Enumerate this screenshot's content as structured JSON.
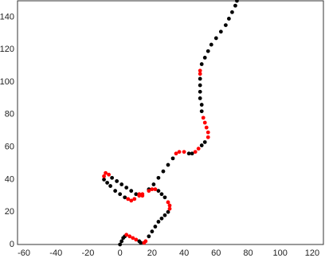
{
  "chart_data": {
    "type": "scatter",
    "xlim": [
      -64,
      127
    ],
    "ylim": [
      0,
      150
    ],
    "xticks": [
      -60,
      -40,
      -20,
      0,
      20,
      40,
      60,
      80,
      100,
      120
    ],
    "yticks": [
      0,
      20,
      40,
      60,
      80,
      100,
      120,
      140
    ],
    "grid": true,
    "series": [
      {
        "color": "#000000",
        "x": [
          0,
          1,
          2,
          3,
          12,
          13,
          18,
          20,
          22,
          24,
          26,
          28,
          30,
          28,
          26,
          24,
          3,
          0,
          -3,
          -6,
          -8,
          -10,
          -5,
          -2,
          1,
          4,
          7,
          10,
          18,
          21,
          24,
          27,
          30,
          33,
          43,
          45,
          51,
          53,
          51,
          51,
          50,
          50,
          50,
          50,
          51,
          53,
          55,
          57,
          60,
          63,
          66,
          68,
          70,
          72,
          73
        ],
        "y": [
          0,
          2,
          4,
          5,
          2,
          1,
          5,
          8,
          11,
          14,
          16,
          18,
          20,
          29,
          31,
          33,
          29,
          31,
          33,
          36,
          38,
          40,
          41,
          39,
          37,
          35,
          33,
          31,
          34,
          37,
          41,
          45,
          49,
          53,
          56,
          56,
          61,
          63,
          82,
          86,
          90,
          94,
          98,
          102,
          111,
          115,
          119,
          123,
          127,
          131,
          135,
          139,
          143,
          147,
          150
        ]
      },
      {
        "color": "#ff0000",
        "x": [
          4,
          6,
          8,
          10,
          15,
          16,
          31,
          31,
          30,
          22,
          20,
          18,
          14,
          12,
          9,
          7,
          5,
          -10,
          -9,
          -7,
          12,
          14,
          35,
          37,
          40,
          47,
          49,
          55,
          55,
          54,
          53,
          52,
          50,
          50
        ],
        "y": [
          6,
          5,
          4,
          3,
          1,
          2,
          22,
          24,
          26,
          34,
          34,
          33,
          31,
          30,
          28,
          27,
          28,
          42,
          44,
          43,
          31,
          30,
          56,
          57,
          57,
          57,
          59,
          66,
          69,
          72,
          75,
          78,
          105,
          107
        ]
      }
    ]
  }
}
